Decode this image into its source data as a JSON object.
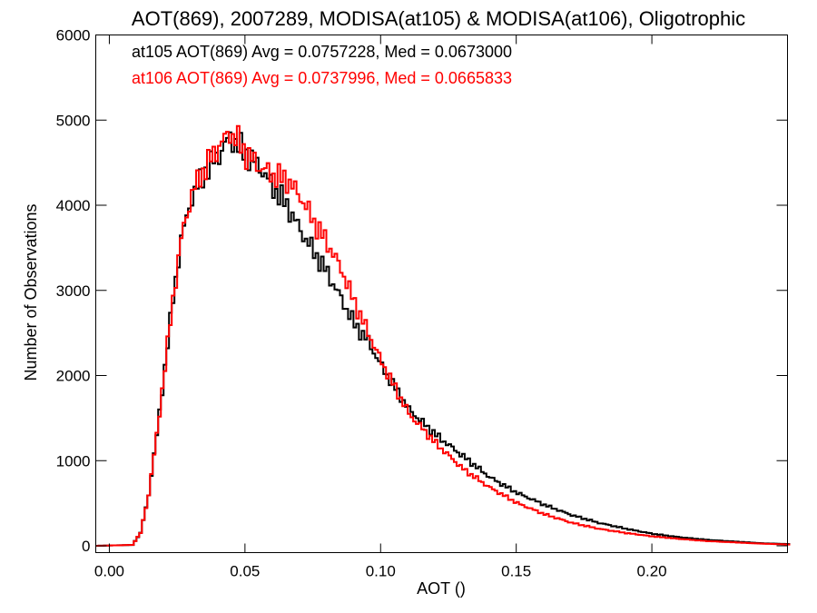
{
  "chart_data": {
    "type": "line",
    "title": "AOT(869), 2007289, MODISA(at105) & MODISA(at106), Oligotrophic",
    "xlabel": "AOT ()",
    "ylabel": "Number of Observations",
    "xlim": [
      -0.005,
      0.25
    ],
    "ylim": [
      -80,
      6000
    ],
    "grid": false,
    "legend_position": "top-left",
    "x_ticks": [
      0.0,
      0.05,
      0.1,
      0.15,
      0.2
    ],
    "x_tick_labels": [
      "0.00",
      "0.05",
      "0.10",
      "0.15",
      "0.20"
    ],
    "y_ticks": [
      0,
      1000,
      2000,
      3000,
      4000,
      5000,
      6000
    ],
    "y_tick_labels": [
      "0",
      "1000",
      "2000",
      "3000",
      "4000",
      "5000",
      "6000"
    ],
    "series": [
      {
        "name": "at105 AOT(869) Avg = 0.0757228, Med = 0.0673000",
        "color": "#000000",
        "x": [
          -0.005,
          0.008,
          0.011,
          0.014,
          0.017,
          0.02,
          0.023,
          0.026,
          0.03,
          0.035,
          0.04,
          0.044,
          0.047,
          0.05,
          0.055,
          0.06,
          0.065,
          0.07,
          0.075,
          0.08,
          0.085,
          0.09,
          0.095,
          0.1,
          0.105,
          0.11,
          0.12,
          0.13,
          0.14,
          0.15,
          0.16,
          0.17,
          0.18,
          0.19,
          0.2,
          0.21,
          0.22,
          0.23,
          0.24,
          0.25
        ],
        "y": [
          0,
          10,
          150,
          600,
          1300,
          2100,
          2900,
          3600,
          4100,
          4400,
          4600,
          4800,
          4700,
          4600,
          4450,
          4200,
          4000,
          3700,
          3450,
          3200,
          2900,
          2600,
          2400,
          2100,
          1850,
          1600,
          1300,
          1050,
          800,
          620,
          480,
          360,
          270,
          200,
          140,
          100,
          70,
          50,
          30,
          20
        ]
      },
      {
        "name": "at106 AOT(869) Avg = 0.0737996, Med = 0.0665833",
        "color": "#ff0000",
        "x": [
          -0.005,
          0.008,
          0.011,
          0.014,
          0.017,
          0.02,
          0.023,
          0.026,
          0.03,
          0.035,
          0.04,
          0.044,
          0.047,
          0.05,
          0.055,
          0.06,
          0.065,
          0.07,
          0.075,
          0.08,
          0.085,
          0.09,
          0.095,
          0.1,
          0.105,
          0.11,
          0.12,
          0.13,
          0.14,
          0.15,
          0.16,
          0.17,
          0.18,
          0.19,
          0.2,
          0.21,
          0.22,
          0.23,
          0.24,
          0.25
        ],
        "y": [
          0,
          10,
          150,
          600,
          1300,
          2100,
          2900,
          3600,
          4150,
          4450,
          4700,
          4850,
          4750,
          4600,
          4450,
          4350,
          4300,
          4100,
          3800,
          3550,
          3250,
          2850,
          2500,
          2150,
          1850,
          1550,
          1200,
          900,
          680,
          500,
          370,
          270,
          200,
          150,
          110,
          80,
          55,
          40,
          25,
          15
        ]
      }
    ]
  }
}
